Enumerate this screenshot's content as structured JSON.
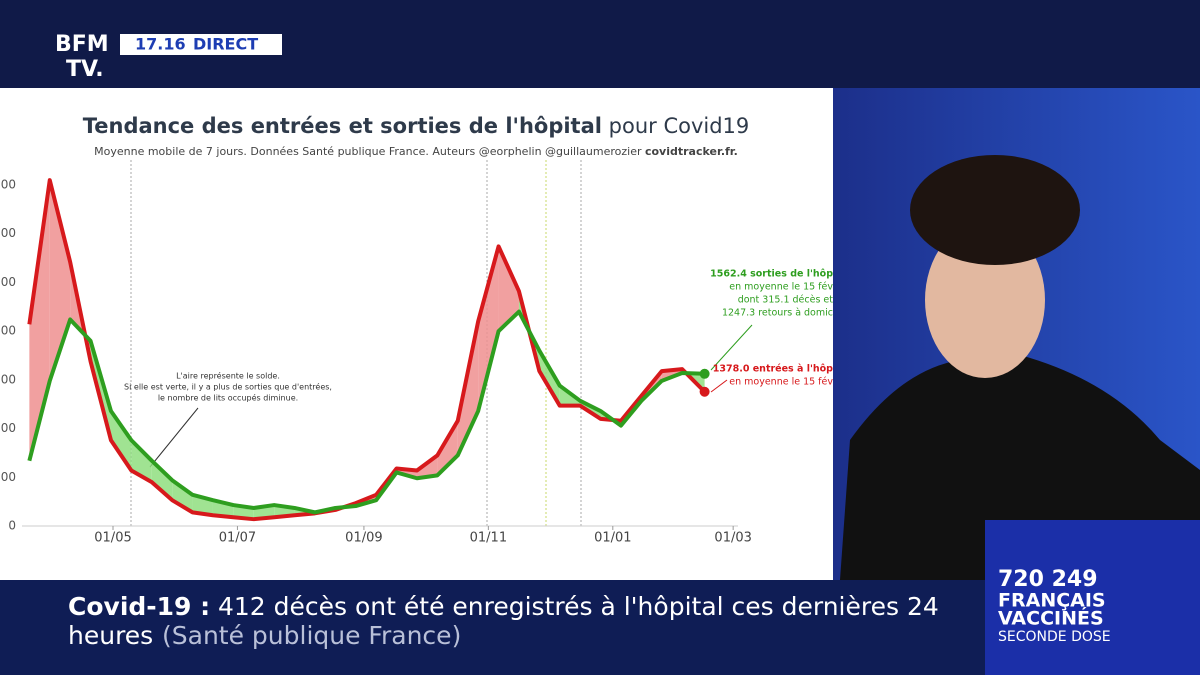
{
  "broadcast": {
    "logo_line1": "BFM",
    "logo_line2": "TV.",
    "time": "17.16",
    "live": "DIRECT"
  },
  "chart_data": {
    "type": "line",
    "title": "Tendance des entrées et sorties de l'hôpital",
    "title_suffix": "pour Covid19",
    "subtitle": "Moyenne mobile de 7 jours. Données Santé publique France. Auteurs @eorphelin @guillaumerozier",
    "subtitle_source": "covidtracker.fr.",
    "x": [
      "21/03",
      "31/03",
      "10/04",
      "20/04",
      "30/04",
      "10/05",
      "20/05",
      "30/05",
      "09/06",
      "19/06",
      "29/06",
      "09/07",
      "19/07",
      "29/07",
      "08/08",
      "18/08",
      "28/08",
      "07/09",
      "17/09",
      "27/09",
      "07/10",
      "17/10",
      "27/10",
      "06/11",
      "16/11",
      "26/11",
      "06/12",
      "16/12",
      "26/12",
      "05/01",
      "15/01",
      "25/01",
      "04/02",
      "15/02"
    ],
    "xticks": [
      "01/05",
      "01/07",
      "01/09",
      "01/11",
      "01/01",
      "01/03"
    ],
    "ylim": [
      0,
      3500
    ],
    "yticks": [
      {
        "value": 0,
        "label": "0"
      },
      {
        "value": 500,
        "label": "00"
      },
      {
        "value": 1000,
        "label": "00"
      },
      {
        "value": 1500,
        "label": "00"
      },
      {
        "value": 2000,
        "label": "00"
      },
      {
        "value": 2500,
        "label": "00"
      },
      {
        "value": 3000,
        "label": "00"
      },
      {
        "value": 3500,
        "label": "00"
      }
    ],
    "series": [
      {
        "name": "entrées",
        "color": "#d7191c",
        "values": [
          2070,
          3550,
          2710,
          1690,
          880,
          570,
          450,
          265,
          140,
          110,
          90,
          70,
          90,
          110,
          130,
          165,
          235,
          320,
          590,
          570,
          725,
          1080,
          2100,
          2870,
          2410,
          1590,
          1235,
          1235,
          1100,
          1080,
          1335,
          1590,
          1610,
          1378.0
        ]
      },
      {
        "name": "sorties",
        "color": "#2e9e1f",
        "values": [
          670,
          1490,
          2120,
          1900,
          1180,
          880,
          670,
          470,
          320,
          265,
          215,
          185,
          215,
          185,
          140,
          185,
          205,
          265,
          550,
          490,
          520,
          725,
          1180,
          2000,
          2200,
          1800,
          1440,
          1285,
          1180,
          1030,
          1285,
          1490,
          1570,
          1562.4
        ]
      }
    ],
    "annotations": {
      "area": [
        "L'aire représente le solde.",
        "Si elle est verte, il y a plus de sorties que d'entrées,",
        "le nombre de lits occupés diminue."
      ],
      "exits": [
        "1562.4 sorties de l'hôp",
        "en moyenne le 15 fév",
        "dont 315.1 décès et",
        "1247.3 retours à domic"
      ],
      "entries": [
        "1378.0 entrées à l'hôp",
        "en moyenne le 15 fév"
      ]
    }
  },
  "ticker": {
    "label": "Covid-19 :",
    "line1": "412 décès ont été enregistrés à l'hôpital ces dernières 24",
    "line2": "heures",
    "source": "(Santé publique France)"
  },
  "side_box": {
    "number": "720 249",
    "line1": "FRANÇAIS",
    "line2": "VACCINÉS",
    "line3": "SECONDE DOSE"
  }
}
